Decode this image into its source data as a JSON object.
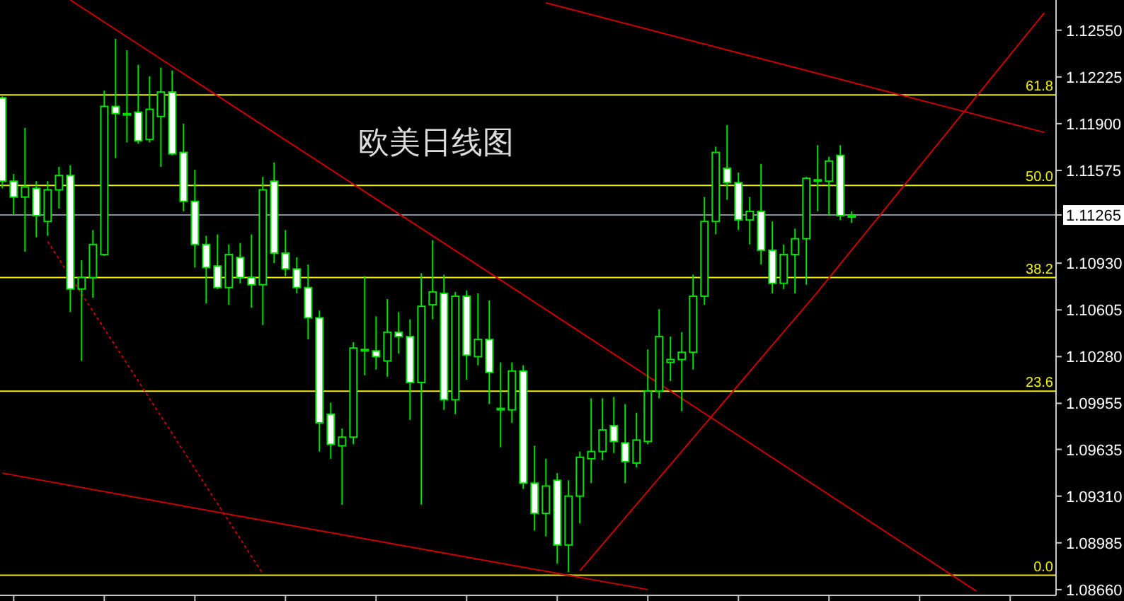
{
  "chart_data": {
    "type": "candlestick",
    "title": "欧美日线图",
    "color": "#00e000",
    "tick_labels": "y",
    "categories": [
      null,
      null,
      null,
      null,
      null,
      null,
      null,
      null,
      null,
      null,
      null,
      null,
      null,
      null,
      null,
      null,
      null,
      null,
      null,
      null,
      null,
      null,
      null,
      null,
      null,
      null,
      null,
      null,
      null,
      null,
      null,
      null,
      null,
      null,
      null,
      null,
      null,
      null,
      null,
      null,
      null,
      null,
      null,
      null,
      null,
      null,
      null,
      null,
      null,
      null,
      null,
      null,
      null,
      null,
      null,
      null,
      null,
      null,
      null,
      null,
      null,
      null,
      null,
      null,
      null,
      null,
      null,
      null,
      null,
      null,
      null,
      null,
      null,
      null,
      null,
      null,
      null,
      null,
      null,
      null,
      null,
      null,
      null,
      null,
      null,
      null,
      null,
      null,
      null,
      null,
      null,
      null,
      null
    ],
    "ohlc": [
      [
        1.1208,
        1.1209,
        1.1145,
        1.115
      ],
      [
        1.115,
        1.1155,
        1.1127,
        1.1139
      ],
      [
        1.1139,
        1.1187,
        1.1101,
        1.1146
      ],
      [
        1.1145,
        1.115,
        1.1111,
        1.1126
      ],
      [
        1.1122,
        1.115,
        1.1112,
        1.1144
      ],
      [
        1.1144,
        1.116,
        1.1131,
        1.1154
      ],
      [
        1.1154,
        1.1161,
        1.1059,
        1.1075
      ],
      [
        1.1075,
        1.1095,
        1.1025,
        1.1083
      ],
      [
        1.1083,
        1.1116,
        1.1069,
        1.1106
      ],
      [
        1.1099,
        1.1213,
        1.1098,
        1.1202
      ],
      [
        1.1202,
        1.1249,
        1.1166,
        1.1197
      ],
      [
        1.1197,
        1.1241,
        1.1177,
        1.1197
      ],
      [
        1.1198,
        1.1231,
        1.1176,
        1.1178
      ],
      [
        1.1179,
        1.1223,
        1.1177,
        1.12
      ],
      [
        1.1195,
        1.1229,
        1.116,
        1.1212
      ],
      [
        1.1212,
        1.1227,
        1.1168,
        1.1169
      ],
      [
        1.117,
        1.119,
        1.1129,
        1.1136
      ],
      [
        1.1136,
        1.1158,
        1.109,
        1.1106
      ],
      [
        1.1106,
        1.1112,
        1.1065,
        1.109
      ],
      [
        1.1091,
        1.1113,
        1.1075,
        1.1076
      ],
      [
        1.1076,
        1.1106,
        1.1064,
        1.1099
      ],
      [
        1.1097,
        1.1107,
        1.1079,
        1.1083
      ],
      [
        1.1083,
        1.1113,
        1.1062,
        1.1078
      ],
      [
        1.1078,
        1.1153,
        1.105,
        1.1144
      ],
      [
        1.115,
        1.1163,
        1.1093,
        1.11
      ],
      [
        1.11,
        1.1116,
        1.1084,
        1.1089
      ],
      [
        1.1089,
        1.1097,
        1.1072,
        1.1076
      ],
      [
        1.1076,
        1.1092,
        1.104,
        1.1055
      ],
      [
        1.1055,
        1.106,
        1.0962,
        1.0982
      ],
      [
        1.0988,
        1.0996,
        1.0957,
        1.0967
      ],
      [
        1.0966,
        1.0978,
        1.0925,
        1.0972
      ],
      [
        1.0972,
        1.1038,
        1.0967,
        1.1034
      ],
      [
        1.1033,
        1.1084,
        1.1015,
        1.1033
      ],
      [
        1.1032,
        1.1056,
        1.1019,
        1.1028
      ],
      [
        1.1025,
        1.1068,
        1.1014,
        1.1045
      ],
      [
        1.1045,
        1.1059,
        1.103,
        1.1042
      ],
      [
        1.1042,
        1.1054,
        1.0984,
        1.101
      ],
      [
        1.101,
        1.1086,
        1.0925,
        1.1063
      ],
      [
        1.1064,
        1.1109,
        1.1054,
        1.1073
      ],
      [
        1.1072,
        1.1085,
        1.0991,
        1.0998
      ],
      [
        1.0998,
        1.1073,
        1.0988,
        1.107
      ],
      [
        1.107,
        1.1074,
        1.1012,
        1.1029
      ],
      [
        1.1028,
        1.1072,
        1.1022,
        1.104
      ],
      [
        1.104,
        1.1067,
        1.0995,
        1.1017
      ],
      [
        1.0992,
        1.1024,
        1.0965,
        1.0992
      ],
      [
        1.0991,
        1.1024,
        1.0982,
        1.1018
      ],
      [
        1.1018,
        1.1022,
        1.0936,
        1.094
      ],
      [
        1.094,
        1.0966,
        1.0907,
        1.0919
      ],
      [
        1.0919,
        1.0957,
        1.0903,
        1.0938
      ],
      [
        1.0942,
        1.0947,
        1.0884,
        1.0897
      ],
      [
        1.0897,
        1.0942,
        1.0878,
        1.0931
      ],
      [
        1.0931,
        1.0962,
        1.0912,
        1.0958
      ],
      [
        1.0957,
        1.0999,
        1.094,
        1.0962
      ],
      [
        1.0962,
        1.0999,
        1.0956,
        1.0977
      ],
      [
        1.098,
        1.1,
        1.0961,
        1.0969
      ],
      [
        1.0968,
        1.0995,
        1.094,
        1.0955
      ],
      [
        1.0954,
        1.0989,
        1.0951,
        1.097
      ],
      [
        1.0969,
        1.1033,
        1.0967,
        1.1004
      ],
      [
        1.1004,
        1.1061,
        1.0999,
        1.1042
      ],
      [
        1.1024,
        1.1042,
        1.1011,
        1.1026
      ],
      [
        1.1026,
        1.1045,
        1.099,
        1.1031
      ],
      [
        1.1031,
        1.1085,
        1.1019,
        1.107
      ],
      [
        1.107,
        1.1139,
        1.1064,
        1.1122
      ],
      [
        1.1122,
        1.1174,
        1.1113,
        1.117
      ],
      [
        1.1159,
        1.1189,
        1.1137,
        1.1149
      ],
      [
        1.1149,
        1.1156,
        1.1116,
        1.1123
      ],
      [
        1.1123,
        1.1139,
        1.1106,
        1.1129
      ],
      [
        1.1129,
        1.1162,
        1.1092,
        1.1102
      ],
      [
        1.1102,
        1.1122,
        1.1072,
        1.1079
      ],
      [
        1.1079,
        1.1106,
        1.1075,
        1.1099
      ],
      [
        1.1099,
        1.1117,
        1.1072,
        1.111
      ],
      [
        1.111,
        1.1153,
        1.1078,
        1.1152
      ],
      [
        1.1151,
        1.1175,
        1.1129,
        1.1151
      ],
      [
        1.115,
        1.1167,
        1.1126,
        1.1164
      ],
      [
        1.1168,
        1.1175,
        1.1123,
        1.1126
      ],
      [
        1.1126,
        1.1129,
        1.1121,
        1.1126
      ],
      null,
      null,
      null,
      null,
      null,
      null,
      null,
      null,
      null,
      null,
      null,
      null,
      null,
      null,
      null,
      null,
      null
    ],
    "series": [
      {
        "type": "line",
        "color": "#cc0000",
        "line_style": "solid",
        "values": [
          null,
          null,
          null,
          null,
          null,
          null,
          1.1276,
          null,
          null,
          null,
          null,
          null,
          null,
          null,
          null,
          null,
          null,
          null,
          null,
          null,
          null,
          null,
          null,
          null,
          null,
          null,
          null,
          null,
          null,
          null,
          null,
          null,
          null,
          null,
          null,
          null,
          null,
          null,
          null,
          null,
          null,
          null,
          null,
          null,
          null,
          null,
          1.1071,
          null,
          null,
          null,
          null,
          null,
          null,
          null,
          null,
          null,
          null,
          null,
          null,
          null,
          null,
          null,
          null,
          null,
          null,
          null,
          null,
          null,
          null,
          null,
          null,
          null,
          null,
          null,
          null,
          null,
          null,
          null,
          null,
          null,
          null,
          null,
          null,
          null,
          null,
          null,
          1.0865,
          null,
          null,
          null,
          null,
          null,
          null
        ]
      },
      {
        "type": "line",
        "color": "#cc0000",
        "line_style": "solid",
        "values": [
          null,
          null,
          null,
          null,
          null,
          null,
          null,
          null,
          null,
          null,
          null,
          null,
          null,
          null,
          null,
          null,
          null,
          null,
          null,
          null,
          null,
          null,
          null,
          null,
          null,
          null,
          null,
          null,
          null,
          null,
          null,
          null,
          null,
          null,
          null,
          null,
          null,
          null,
          null,
          null,
          null,
          null,
          null,
          null,
          null,
          null,
          null,
          null,
          1.1274,
          null,
          null,
          null,
          null,
          null,
          null,
          null,
          null,
          null,
          null,
          null,
          null,
          null,
          null,
          null,
          null,
          null,
          null,
          null,
          null,
          null,
          1.1229,
          null,
          null,
          null,
          null,
          null,
          null,
          null,
          null,
          null,
          null,
          null,
          null,
          null,
          null,
          null,
          null,
          null,
          null,
          null,
          null,
          null,
          1.1184
        ]
      },
      {
        "type": "line",
        "color": "#cc0000",
        "line_style": "solid",
        "values": [
          null,
          null,
          null,
          null,
          null,
          null,
          null,
          null,
          null,
          null,
          null,
          null,
          null,
          null,
          null,
          null,
          null,
          null,
          null,
          null,
          null,
          null,
          null,
          null,
          null,
          null,
          null,
          null,
          null,
          null,
          null,
          null,
          null,
          null,
          null,
          null,
          null,
          null,
          null,
          null,
          null,
          null,
          null,
          null,
          null,
          null,
          null,
          null,
          null,
          null,
          null,
          1.0879,
          null,
          null,
          null,
          null,
          null,
          null,
          null,
          null,
          null,
          null,
          null,
          null,
          null,
          null,
          null,
          null,
          null,
          null,
          null,
          null,
          1.1073,
          null,
          null,
          null,
          null,
          null,
          null,
          null,
          null,
          null,
          null,
          null,
          null,
          null,
          null,
          null,
          null,
          null,
          null,
          null,
          1.1267
        ]
      },
      {
        "type": "line",
        "color": "#cc0000",
        "line_style": "solid",
        "values": [
          1.0947,
          null,
          null,
          null,
          null,
          null,
          null,
          null,
          null,
          null,
          null,
          null,
          null,
          null,
          null,
          null,
          null,
          null,
          null,
          null,
          null,
          null,
          null,
          null,
          null,
          null,
          null,
          null,
          1.0907,
          null,
          null,
          null,
          null,
          null,
          null,
          null,
          null,
          null,
          null,
          null,
          null,
          null,
          null,
          null,
          null,
          null,
          null,
          null,
          null,
          null,
          null,
          null,
          null,
          null,
          null,
          null,
          null,
          1.0866,
          null,
          null,
          null,
          null,
          null,
          null,
          null,
          null,
          null,
          null,
          null,
          null,
          null,
          null,
          null,
          null,
          null,
          null,
          null,
          null,
          null,
          null,
          null,
          null,
          null,
          null,
          null,
          null,
          null,
          null,
          null,
          null,
          null,
          null,
          null
        ]
      },
      {
        "type": "line",
        "color": "#cc0000",
        "line_style": "dotted",
        "values": [
          null,
          null,
          null,
          null,
          1.1108,
          null,
          null,
          null,
          null,
          null,
          null,
          null,
          1.1011,
          null,
          null,
          null,
          null,
          null,
          null,
          null,
          null,
          null,
          null,
          1.0877,
          null,
          null,
          null,
          null,
          null,
          null,
          null,
          null,
          null,
          null,
          null,
          null,
          null,
          null,
          null,
          null,
          null,
          null,
          null,
          null,
          null,
          null,
          null,
          null,
          null,
          null,
          null,
          null,
          null,
          null,
          null,
          null,
          null,
          null,
          null,
          null,
          null,
          null,
          null,
          null,
          null,
          null,
          null,
          null,
          null,
          null,
          null,
          null,
          null,
          null,
          null,
          null,
          null,
          null,
          null,
          null,
          null,
          null,
          null,
          null,
          null,
          null,
          null,
          null,
          null,
          null,
          null,
          null,
          null
        ]
      }
    ],
    "ref_lines": [
      {
        "axis": "y",
        "value": 1.121,
        "color": "#f0f000"
      },
      {
        "axis": "y",
        "value": 1.1147,
        "color": "#f0f000"
      },
      {
        "axis": "y",
        "value": 1.11265,
        "color": "#8890a0"
      },
      {
        "axis": "y",
        "value": 1.1083,
        "color": "#f0f000"
      },
      {
        "axis": "y",
        "value": 1.1004,
        "color": "#f0f000"
      },
      {
        "axis": "y",
        "value": 1.0876,
        "color": "#f0f000"
      }
    ],
    "annotations": [
      {
        "text": "61.8",
        "y": 1.121
      },
      {
        "text": "50.0",
        "y": 1.1147
      },
      {
        "text": "38.2",
        "y": 1.1083
      },
      {
        "text": "23.6",
        "y": 1.1004
      },
      {
        "text": "0.0",
        "y": 1.0876
      }
    ],
    "ylim": [
      1.0862,
      1.1276
    ],
    "yticks": [
      {
        "value": 1.1255,
        "label": "1.12550"
      },
      {
        "value": 1.12225,
        "label": "1.12225"
      },
      {
        "value": 1.119,
        "label": "1.11900"
      },
      {
        "value": 1.11575,
        "label": "1.11575"
      },
      {
        "value": 1.11265,
        "label": "1.11265"
      },
      {
        "value": 1.1093,
        "label": "1.10930"
      },
      {
        "value": 1.10605,
        "label": "1.10605"
      },
      {
        "value": 1.1028,
        "label": "1.10280"
      },
      {
        "value": 1.09955,
        "label": "1.09955"
      },
      {
        "value": 1.09635,
        "label": "1.09635"
      },
      {
        "value": 1.0931,
        "label": "1.09310"
      },
      {
        "value": 1.08985,
        "label": "1.08985"
      },
      {
        "value": 1.0866,
        "label": "1.08660"
      }
    ]
  }
}
